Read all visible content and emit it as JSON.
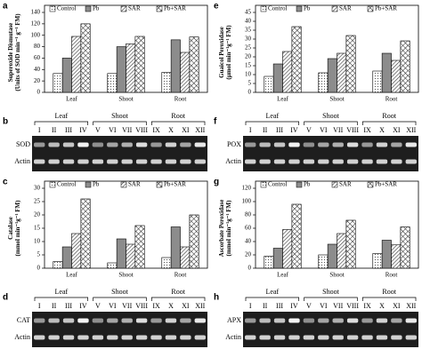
{
  "chart_data": [
    {
      "type": "bar",
      "panel": "a",
      "ylabel": [
        "Superoxide Dismutase",
        "(Units of SOD min⁻¹ g⁻¹ FM)"
      ],
      "categories": [
        "Leaf",
        "Shoot",
        "Root"
      ],
      "ylim": [
        0,
        140
      ],
      "yticks": [
        0,
        20,
        40,
        60,
        80,
        100,
        120,
        140
      ],
      "legend": "top",
      "series": [
        {
          "name": "Control",
          "color": "#ffffff",
          "pattern": "dots",
          "values": [
            33,
            33,
            35
          ]
        },
        {
          "name": "Pb",
          "color": "#8c8c8c",
          "pattern": "solid",
          "values": [
            60,
            80,
            92
          ]
        },
        {
          "name": "SAR",
          "color": "#ffffff",
          "pattern": "diagonal",
          "values": [
            98,
            85,
            70
          ]
        },
        {
          "name": "Pb+SAR",
          "color": "#ffffff",
          "pattern": "crosshatch",
          "values": [
            120,
            98,
            97
          ]
        }
      ]
    },
    {
      "type": "bar",
      "panel": "c",
      "ylabel": [
        "Catalase",
        "(mmol min⁻¹g⁻¹ FM)"
      ],
      "categories": [
        "Leaf",
        "Shoot",
        "Root"
      ],
      "ylim": [
        0,
        30
      ],
      "yticks": [
        0,
        5,
        10,
        15,
        20,
        25,
        30
      ],
      "legend": "top",
      "series": [
        {
          "name": "Control",
          "color": "#ffffff",
          "pattern": "dots",
          "values": [
            2.5,
            2,
            4
          ]
        },
        {
          "name": "Pb",
          "color": "#8c8c8c",
          "pattern": "solid",
          "values": [
            8,
            11,
            15.5
          ]
        },
        {
          "name": "SAR",
          "color": "#ffffff",
          "pattern": "diagonal",
          "values": [
            13,
            9,
            8
          ]
        },
        {
          "name": "Pb+SAR",
          "color": "#ffffff",
          "pattern": "crosshatch",
          "values": [
            26,
            16,
            20
          ]
        }
      ]
    },
    {
      "type": "bar",
      "panel": "e",
      "ylabel": [
        "Guaicol Peroxidase",
        "(µmol min⁻¹g⁻¹ FM)"
      ],
      "categories": [
        "Leaf",
        "Shoot",
        "Root"
      ],
      "ylim": [
        0,
        45
      ],
      "yticks": [
        0,
        5,
        10,
        15,
        20,
        25,
        30,
        35,
        40,
        45
      ],
      "legend": "top",
      "series": [
        {
          "name": "Control",
          "color": "#ffffff",
          "pattern": "dots",
          "values": [
            9,
            11,
            12
          ]
        },
        {
          "name": "Pb",
          "color": "#8c8c8c",
          "pattern": "solid",
          "values": [
            16,
            19,
            22
          ]
        },
        {
          "name": "SAR",
          "color": "#ffffff",
          "pattern": "diagonal",
          "values": [
            23,
            22,
            18
          ]
        },
        {
          "name": "Pb+SAR",
          "color": "#ffffff",
          "pattern": "crosshatch",
          "values": [
            37,
            32,
            29
          ]
        }
      ]
    },
    {
      "type": "bar",
      "panel": "g",
      "ylabel": [
        "Ascorbate Peroxidase",
        "(mmol min⁻¹g⁻¹ FM)"
      ],
      "categories": [
        "Leaf",
        "Shoot",
        "Root"
      ],
      "ylim": [
        0,
        120
      ],
      "yticks": [
        0,
        20,
        40,
        60,
        80,
        100,
        120
      ],
      "legend": "top",
      "series": [
        {
          "name": "Control",
          "color": "#ffffff",
          "pattern": "dots",
          "values": [
            18,
            20,
            22
          ]
        },
        {
          "name": "Pb",
          "color": "#8c8c8c",
          "pattern": "solid",
          "values": [
            30,
            36,
            42
          ]
        },
        {
          "name": "SAR",
          "color": "#ffffff",
          "pattern": "diagonal",
          "values": [
            58,
            52,
            35
          ]
        },
        {
          "name": "Pb+SAR",
          "color": "#ffffff",
          "pattern": "crosshatch",
          "values": [
            96,
            72,
            62
          ]
        }
      ]
    }
  ],
  "gels": [
    {
      "panel": "b",
      "groups": [
        "Leaf",
        "Shoot",
        "Root"
      ],
      "lanes": [
        "I",
        "II",
        "III",
        "IV",
        "V",
        "VI",
        "VII",
        "VIII",
        "IX",
        "X",
        "XI",
        "XII"
      ],
      "rows": [
        "SOD",
        "Actin"
      ]
    },
    {
      "panel": "d",
      "groups": [
        "Leaf",
        "Shoot",
        "Root"
      ],
      "lanes": [
        "I",
        "II",
        "III",
        "IV",
        "V",
        "VI",
        "VII",
        "VIII",
        "IX",
        "X",
        "XI",
        "XII"
      ],
      "rows": [
        "CAT",
        "Actin"
      ]
    },
    {
      "panel": "f",
      "groups": [
        "Leaf",
        "Shoot",
        "Root"
      ],
      "lanes": [
        "I",
        "II",
        "III",
        "IV",
        "V",
        "VI",
        "VII",
        "VIII",
        "IX",
        "X",
        "XI",
        "XII"
      ],
      "rows": [
        "POX",
        "Actin"
      ]
    },
    {
      "panel": "h",
      "groups": [
        "Leaf",
        "Shoot",
        "Root"
      ],
      "lanes": [
        "I",
        "II",
        "III",
        "IV",
        "V",
        "VI",
        "VII",
        "VIII",
        "IX",
        "X",
        "XI",
        "XII"
      ],
      "rows": [
        "APX",
        "Actin"
      ]
    }
  ]
}
